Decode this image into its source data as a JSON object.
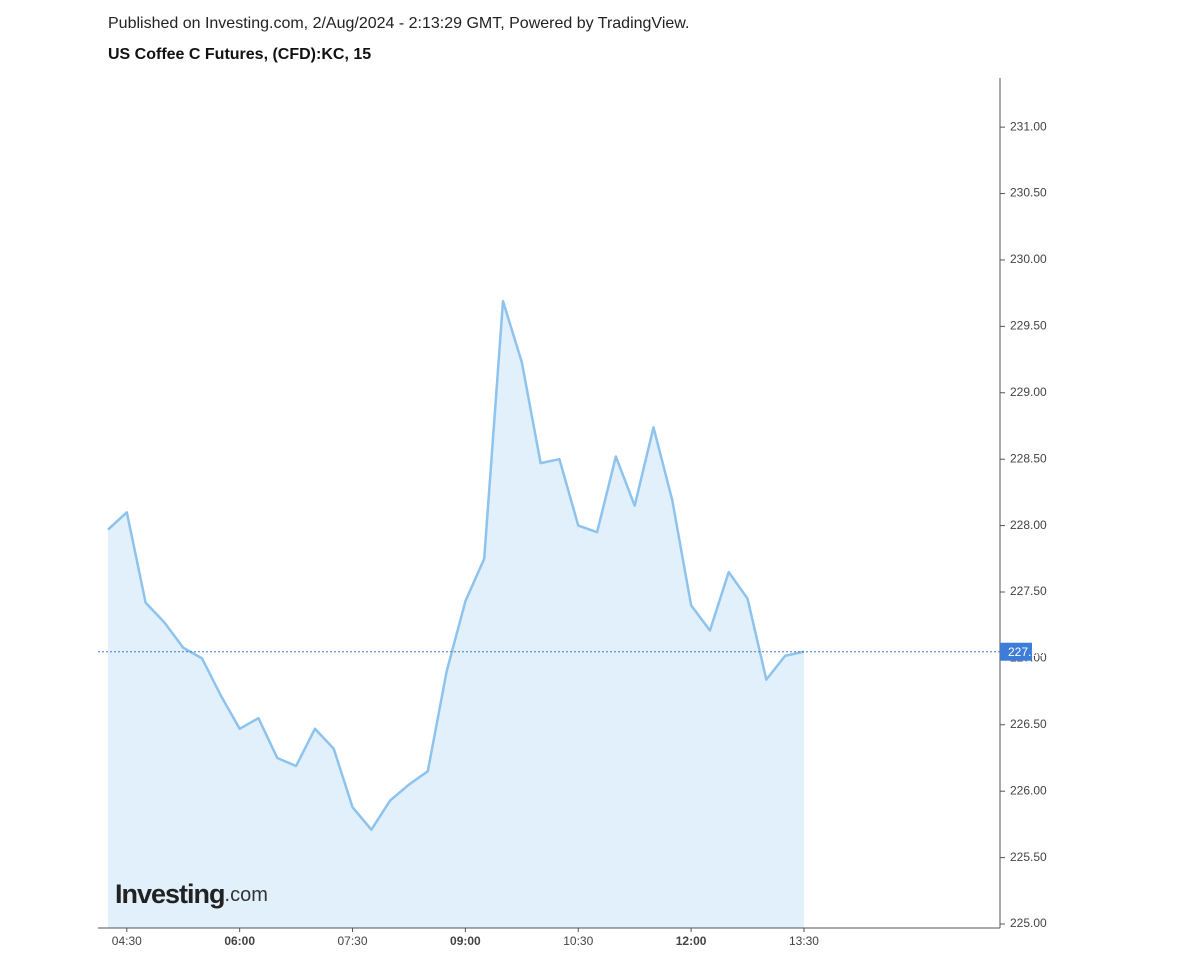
{
  "chart_data": {
    "type": "area",
    "header": "Published on Investing.com, 2/Aug/2024 - 2:13:29 GMT, Powered by TradingView.",
    "title": "US Coffee C Futures, (CFD):KC, 15",
    "logo": {
      "main": "Investing",
      "suffix": ".com"
    },
    "categories": [
      null,
      "04:30",
      null,
      null,
      null,
      null,
      null,
      "06:00",
      null,
      null,
      null,
      null,
      null,
      "07:30",
      null,
      null,
      null,
      null,
      null,
      "09:00",
      null,
      null,
      null,
      null,
      null,
      "10:30",
      null,
      null,
      null,
      null,
      null,
      "12:00",
      null,
      null,
      null,
      null,
      null,
      "13:30"
    ],
    "values": [
      227.97,
      228.1,
      227.42,
      227.27,
      227.08,
      227.0,
      226.72,
      226.47,
      226.55,
      226.25,
      226.19,
      226.47,
      226.32,
      225.88,
      225.71,
      225.93,
      226.05,
      226.15,
      226.9,
      227.43,
      227.75,
      229.69,
      229.23,
      228.47,
      228.5,
      228.0,
      227.95,
      228.52,
      228.15,
      228.74,
      228.19,
      227.4,
      227.21,
      227.65,
      227.45,
      226.84,
      227.02,
      227.05
    ],
    "color": "#8ec3ee",
    "fill": "#e1f0fa",
    "last_color": "#3d7dd8",
    "ylim": [
      224.97,
      231.37
    ],
    "yticks": [
      {
        "value": 225,
        "label": "225.00"
      },
      {
        "value": 225.5,
        "label": "225.50"
      },
      {
        "value": 226,
        "label": "226.00"
      },
      {
        "value": 226.5,
        "label": "226.50"
      },
      {
        "value": 227,
        "label": "227.00"
      },
      {
        "value": 227.5,
        "label": "227.50"
      },
      {
        "value": 228,
        "label": "228.00"
      },
      {
        "value": 228.5,
        "label": "228.50"
      },
      {
        "value": 229,
        "label": "229.00"
      },
      {
        "value": 229.5,
        "label": "229.50"
      },
      {
        "value": 230,
        "label": "230.00"
      },
      {
        "value": 230.5,
        "label": "230.50"
      },
      {
        "value": 231,
        "label": "231.00"
      }
    ]
  }
}
